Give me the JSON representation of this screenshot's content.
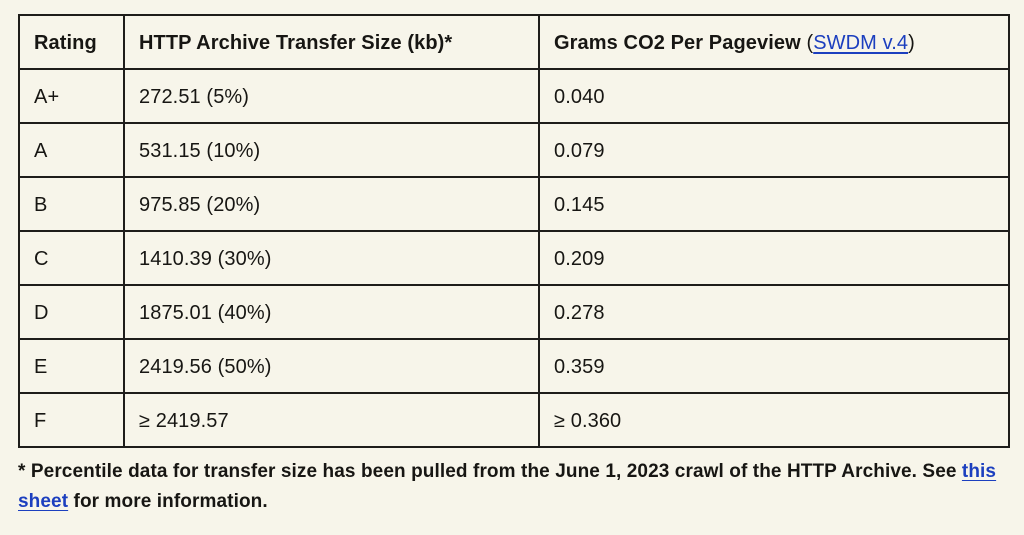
{
  "table": {
    "header": {
      "rating": "Rating",
      "transfer_size": "HTTP Archive Transfer Size (kb)*",
      "co2_title": "Grams CO2 Per Pageview",
      "co2_paren_open": " (",
      "co2_link": "SWDM v.4",
      "co2_paren_close": ")"
    },
    "rows": [
      {
        "rating": "A+",
        "transfer_size": "272.51 (5%)",
        "co2": "0.040"
      },
      {
        "rating": "A",
        "transfer_size": "531.15 (10%)",
        "co2": "0.079"
      },
      {
        "rating": "B",
        "transfer_size": "975.85 (20%)",
        "co2": "0.145"
      },
      {
        "rating": "C",
        "transfer_size": "1410.39 (30%)",
        "co2": "0.209"
      },
      {
        "rating": "D",
        "transfer_size": "1875.01 (40%)",
        "co2": "0.278"
      },
      {
        "rating": "E",
        "transfer_size": "2419.56 (50%)",
        "co2": "0.359"
      },
      {
        "rating": "F",
        "transfer_size": "≥ 2419.57",
        "co2": "≥ 0.360"
      }
    ]
  },
  "footnote": {
    "text_before_link": "* Percentile data for transfer size has been pulled from the June 1, 2023 crawl of the HTTP Archive. See ",
    "link": "this sheet",
    "text_after_link": " for more information."
  },
  "colors": {
    "background": "#f7f5ea",
    "border": "#1e1d1a",
    "text": "#171613",
    "link": "#1c3fbf"
  }
}
